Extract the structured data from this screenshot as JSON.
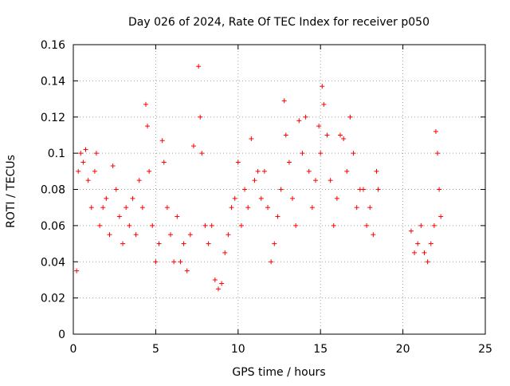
{
  "chart_data": {
    "type": "scatter",
    "title": "Day 026 of 2024, Rate Of TEC Index for receiver p050",
    "xlabel": "GPS time / hours",
    "ylabel": "ROTI / TECUs",
    "xlim": [
      0,
      25
    ],
    "ylim": [
      0,
      0.16
    ],
    "x_ticks": [
      0,
      5,
      10,
      15,
      20,
      25
    ],
    "x_tick_labels": [
      "0",
      "5",
      "10",
      "15",
      "20",
      "25"
    ],
    "y_ticks": [
      0,
      0.02,
      0.04,
      0.06,
      0.08,
      0.1,
      0.12,
      0.14,
      0.16
    ],
    "y_tick_labels": [
      "0",
      "0.02",
      "0.04",
      "0.06",
      "0.08",
      "0.1",
      "0.12",
      "0.14",
      "0.16"
    ],
    "grid": true,
    "marker": "+",
    "color": "#ff0000",
    "series": [
      {
        "points": [
          [
            0.2,
            0.035
          ],
          [
            0.3,
            0.09
          ],
          [
            0.45,
            0.1
          ],
          [
            0.6,
            0.095
          ],
          [
            0.75,
            0.102
          ],
          [
            0.9,
            0.085
          ],
          [
            1.1,
            0.07
          ],
          [
            1.3,
            0.09
          ],
          [
            1.4,
            0.1
          ],
          [
            1.6,
            0.06
          ],
          [
            1.8,
            0.07
          ],
          [
            2.0,
            0.075
          ],
          [
            2.2,
            0.055
          ],
          [
            2.4,
            0.093
          ],
          [
            2.6,
            0.08
          ],
          [
            2.8,
            0.065
          ],
          [
            3.0,
            0.05
          ],
          [
            3.2,
            0.07
          ],
          [
            3.4,
            0.06
          ],
          [
            3.6,
            0.075
          ],
          [
            3.8,
            0.055
          ],
          [
            4.0,
            0.085
          ],
          [
            4.2,
            0.07
          ],
          [
            4.4,
            0.127
          ],
          [
            4.5,
            0.115
          ],
          [
            4.6,
            0.09
          ],
          [
            4.8,
            0.06
          ],
          [
            5.0,
            0.04
          ],
          [
            5.2,
            0.05
          ],
          [
            5.4,
            0.107
          ],
          [
            5.5,
            0.095
          ],
          [
            5.7,
            0.07
          ],
          [
            5.9,
            0.055
          ],
          [
            6.1,
            0.04
          ],
          [
            6.3,
            0.065
          ],
          [
            6.5,
            0.04
          ],
          [
            6.7,
            0.05
          ],
          [
            6.9,
            0.035
          ],
          [
            7.1,
            0.055
          ],
          [
            7.3,
            0.104
          ],
          [
            7.6,
            0.148
          ],
          [
            7.7,
            0.12
          ],
          [
            7.8,
            0.1
          ],
          [
            8.0,
            0.06
          ],
          [
            8.2,
            0.05
          ],
          [
            8.4,
            0.06
          ],
          [
            8.6,
            0.03
          ],
          [
            8.8,
            0.025
          ],
          [
            9.0,
            0.028
          ],
          [
            9.2,
            0.045
          ],
          [
            9.4,
            0.055
          ],
          [
            9.6,
            0.07
          ],
          [
            9.8,
            0.075
          ],
          [
            10.0,
            0.095
          ],
          [
            10.2,
            0.06
          ],
          [
            10.4,
            0.08
          ],
          [
            10.6,
            0.07
          ],
          [
            10.8,
            0.108
          ],
          [
            11.0,
            0.085
          ],
          [
            11.2,
            0.09
          ],
          [
            11.4,
            0.075
          ],
          [
            11.6,
            0.09
          ],
          [
            11.8,
            0.07
          ],
          [
            12.0,
            0.04
          ],
          [
            12.2,
            0.05
          ],
          [
            12.4,
            0.065
          ],
          [
            12.6,
            0.08
          ],
          [
            12.8,
            0.129
          ],
          [
            12.9,
            0.11
          ],
          [
            13.1,
            0.095
          ],
          [
            13.3,
            0.075
          ],
          [
            13.5,
            0.06
          ],
          [
            13.7,
            0.118
          ],
          [
            13.9,
            0.1
          ],
          [
            14.1,
            0.12
          ],
          [
            14.3,
            0.09
          ],
          [
            14.5,
            0.07
          ],
          [
            14.7,
            0.085
          ],
          [
            14.9,
            0.115
          ],
          [
            15.0,
            0.1
          ],
          [
            15.1,
            0.137
          ],
          [
            15.2,
            0.127
          ],
          [
            15.4,
            0.11
          ],
          [
            15.6,
            0.085
          ],
          [
            15.8,
            0.06
          ],
          [
            16.0,
            0.075
          ],
          [
            16.2,
            0.11
          ],
          [
            16.4,
            0.108
          ],
          [
            16.6,
            0.09
          ],
          [
            16.8,
            0.12
          ],
          [
            17.0,
            0.1
          ],
          [
            17.2,
            0.07
          ],
          [
            17.4,
            0.08
          ],
          [
            17.6,
            0.08
          ],
          [
            17.8,
            0.06
          ],
          [
            18.0,
            0.07
          ],
          [
            18.2,
            0.055
          ],
          [
            18.4,
            0.09
          ],
          [
            18.5,
            0.08
          ],
          [
            20.5,
            0.057
          ],
          [
            20.7,
            0.045
          ],
          [
            20.9,
            0.05
          ],
          [
            21.1,
            0.06
          ],
          [
            21.3,
            0.045
          ],
          [
            21.5,
            0.04
          ],
          [
            21.7,
            0.05
          ],
          [
            21.9,
            0.06
          ],
          [
            22.0,
            0.112
          ],
          [
            22.1,
            0.1
          ],
          [
            22.2,
            0.08
          ],
          [
            22.3,
            0.065
          ]
        ]
      }
    ]
  }
}
